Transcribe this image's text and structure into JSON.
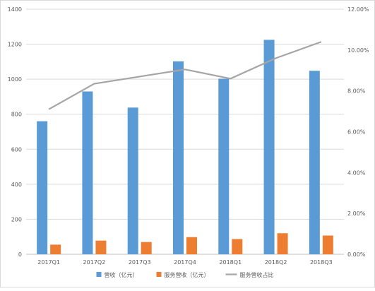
{
  "chart_data": {
    "type": "bar",
    "categories": [
      "2017Q1",
      "2017Q2",
      "2017Q3",
      "2017Q4",
      "2018Q1",
      "2018Q2",
      "2018Q3"
    ],
    "series": [
      {
        "name": "营收（亿元）",
        "kind": "bar",
        "axis": "left",
        "color": "#5b9bd5",
        "values": [
          760,
          930,
          838,
          1102,
          1003,
          1225,
          1048
        ]
      },
      {
        "name": "服务营收（亿元）",
        "kind": "bar",
        "axis": "left",
        "color": "#ed7d31",
        "values": [
          55,
          78,
          70,
          98,
          87,
          120,
          107
        ]
      },
      {
        "name": "服务营收占比",
        "kind": "line",
        "axis": "right",
        "color": "#a5a5a5",
        "values": [
          7.1,
          8.35,
          8.7,
          9.05,
          8.6,
          9.6,
          10.4
        ]
      }
    ],
    "left_axis": {
      "min": 0,
      "max": 1400,
      "ticks": [
        "0",
        "200",
        "400",
        "600",
        "800",
        "1000",
        "1200",
        "1400"
      ]
    },
    "right_axis": {
      "min": 0,
      "max": 12,
      "ticks": [
        "0.00%",
        "2.00%",
        "4.00%",
        "6.00%",
        "8.00%",
        "10.00%",
        "12.00%"
      ]
    },
    "legend_position": "bottom",
    "gridlines": true
  }
}
